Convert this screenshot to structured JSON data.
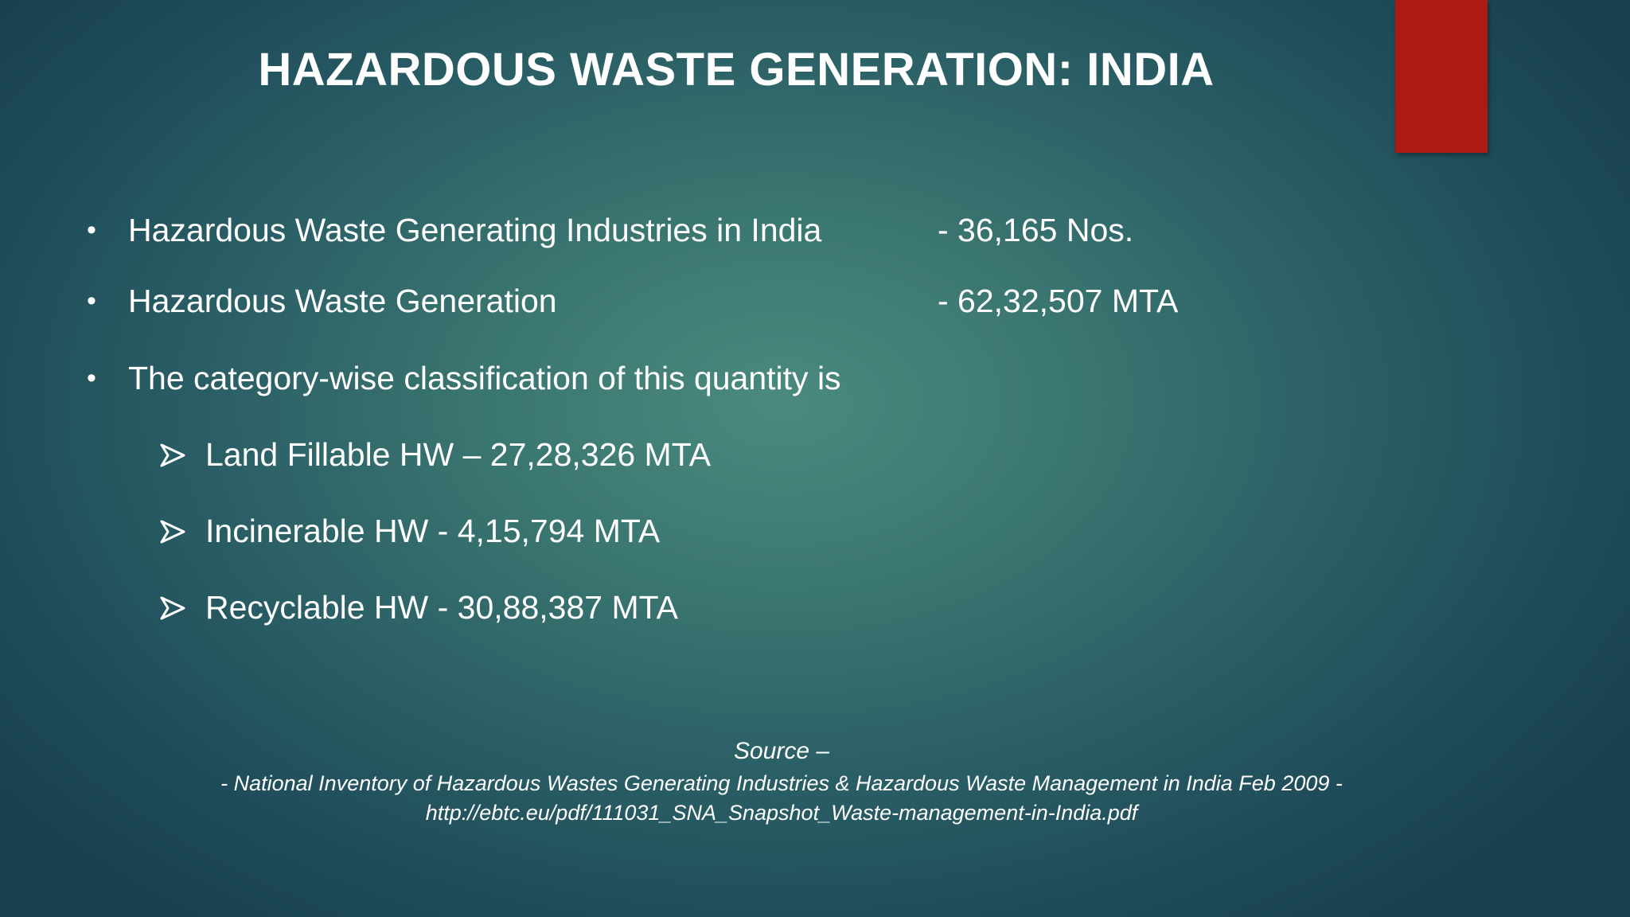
{
  "slide": {
    "title": "HAZARDOUS WASTE GENERATION: INDIA",
    "accent_color": "#ad1913",
    "bullets": [
      {
        "label": "Hazardous Waste Generating Industries in India",
        "value": "- 36,165 Nos."
      },
      {
        "label": "Hazardous Waste Generation",
        "value": "- 62,32,507 MTA"
      },
      {
        "label": "The category-wise classification of this quantity is",
        "value": ""
      }
    ],
    "sub_bullets": [
      {
        "label": "Land Fillable HW – 27,28,326 MTA"
      },
      {
        "label": "Incinerable HW - 4,15,794 MTA"
      },
      {
        "label": "Recyclable HW - 30,88,387 MTA"
      }
    ],
    "source": {
      "label": "Source –",
      "line1": "- National Inventory of Hazardous Wastes Generating Industries & Hazardous Waste Management in India Feb 2009 -",
      "line2": "http://ebtc.eu/pdf/111031_SNA_Snapshot_Waste-management-in-India.pdf"
    }
  }
}
